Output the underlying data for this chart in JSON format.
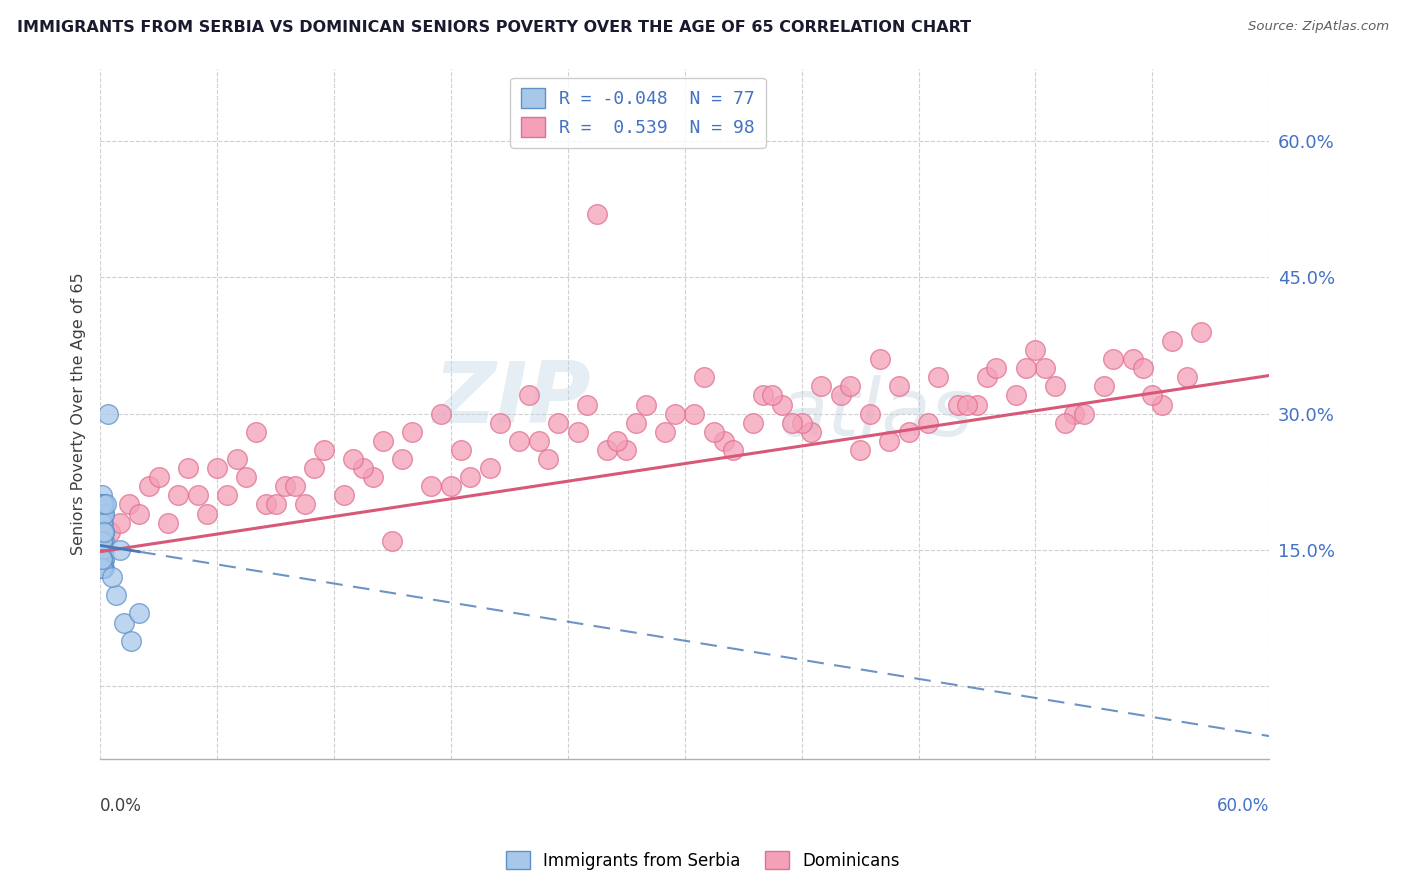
{
  "title": "IMMIGRANTS FROM SERBIA VS DOMINICAN SENIORS POVERTY OVER THE AGE OF 65 CORRELATION CHART",
  "source": "Source: ZipAtlas.com",
  "ylabel": "Seniors Poverty Over the Age of 65",
  "xlim": [
    0.0,
    0.6
  ],
  "ylim": [
    -0.08,
    0.68
  ],
  "serbia_R": -0.048,
  "serbia_N": 77,
  "dominican_R": 0.539,
  "dominican_N": 98,
  "serbia_color": "#a8c8ea",
  "dominican_color": "#f4a0b8",
  "serbia_edge": "#6090c8",
  "dominican_edge": "#e07090",
  "serbia_line_color": "#4878b8",
  "dominican_line_color": "#d85878",
  "watermark_zip": "ZIP",
  "watermark_atlas": "atlas",
  "legend_label_serbia": "Immigrants from Serbia",
  "legend_label_dominican": "Dominicans",
  "serbia_trend_x": [
    0.0,
    0.6
  ],
  "serbia_trend_y": [
    0.155,
    -0.055
  ],
  "dominican_trend_x": [
    0.0,
    0.6
  ],
  "dominican_trend_y": [
    0.148,
    0.342
  ],
  "serbia_x": [
    0.0005,
    0.001,
    0.0015,
    0.001,
    0.002,
    0.001,
    0.0008,
    0.0012,
    0.0006,
    0.001,
    0.0015,
    0.001,
    0.002,
    0.001,
    0.0008,
    0.0012,
    0.001,
    0.0015,
    0.001,
    0.002,
    0.001,
    0.0008,
    0.0012,
    0.001,
    0.0015,
    0.001,
    0.002,
    0.0008,
    0.001,
    0.0015,
    0.001,
    0.0012,
    0.001,
    0.002,
    0.0008,
    0.001,
    0.0015,
    0.001,
    0.002,
    0.0008,
    0.001,
    0.0015,
    0.001,
    0.002,
    0.0008,
    0.001,
    0.0015,
    0.001,
    0.0005,
    0.0008,
    0.001,
    0.0012,
    0.0015,
    0.002,
    0.0008,
    0.001,
    0.0015,
    0.001,
    0.002,
    0.0008,
    0.001,
    0.0015,
    0.001,
    0.002,
    0.0008,
    0.001,
    0.0015,
    0.001,
    0.004,
    0.008,
    0.012,
    0.016,
    0.02,
    0.006,
    0.003,
    0.01,
    0.002
  ],
  "serbia_y": [
    0.18,
    0.16,
    0.2,
    0.14,
    0.19,
    0.17,
    0.15,
    0.21,
    0.13,
    0.18,
    0.16,
    0.2,
    0.15,
    0.17,
    0.19,
    0.14,
    0.18,
    0.16,
    0.2,
    0.13,
    0.17,
    0.15,
    0.19,
    0.18,
    0.14,
    0.16,
    0.17,
    0.2,
    0.15,
    0.13,
    0.18,
    0.16,
    0.19,
    0.14,
    0.17,
    0.15,
    0.2,
    0.13,
    0.16,
    0.18,
    0.17,
    0.15,
    0.19,
    0.14,
    0.16,
    0.18,
    0.13,
    0.17,
    0.15,
    0.2,
    0.16,
    0.14,
    0.18,
    0.17,
    0.19,
    0.15,
    0.13,
    0.16,
    0.2,
    0.14,
    0.18,
    0.17,
    0.15,
    0.19,
    0.16,
    0.13,
    0.2,
    0.14,
    0.3,
    0.1,
    0.07,
    0.05,
    0.08,
    0.12,
    0.2,
    0.15,
    0.17
  ],
  "dominican_x": [
    0.005,
    0.015,
    0.025,
    0.035,
    0.045,
    0.055,
    0.065,
    0.075,
    0.085,
    0.095,
    0.11,
    0.125,
    0.14,
    0.155,
    0.17,
    0.185,
    0.2,
    0.215,
    0.23,
    0.245,
    0.26,
    0.275,
    0.29,
    0.305,
    0.32,
    0.335,
    0.35,
    0.365,
    0.38,
    0.395,
    0.41,
    0.425,
    0.44,
    0.455,
    0.47,
    0.485,
    0.5,
    0.515,
    0.53,
    0.545,
    0.558,
    0.01,
    0.03,
    0.05,
    0.07,
    0.09,
    0.115,
    0.135,
    0.16,
    0.18,
    0.205,
    0.225,
    0.25,
    0.27,
    0.295,
    0.315,
    0.34,
    0.36,
    0.385,
    0.405,
    0.43,
    0.45,
    0.475,
    0.495,
    0.52,
    0.54,
    0.02,
    0.06,
    0.1,
    0.145,
    0.19,
    0.235,
    0.28,
    0.325,
    0.37,
    0.415,
    0.46,
    0.505,
    0.55,
    0.04,
    0.08,
    0.13,
    0.175,
    0.22,
    0.265,
    0.31,
    0.355,
    0.4,
    0.445,
    0.49,
    0.535,
    0.255,
    0.48,
    0.105,
    0.345,
    0.565,
    0.15,
    0.39
  ],
  "dominican_y": [
    0.17,
    0.2,
    0.22,
    0.18,
    0.24,
    0.19,
    0.21,
    0.23,
    0.2,
    0.22,
    0.24,
    0.21,
    0.23,
    0.25,
    0.22,
    0.26,
    0.24,
    0.27,
    0.25,
    0.28,
    0.26,
    0.29,
    0.28,
    0.3,
    0.27,
    0.29,
    0.31,
    0.28,
    0.32,
    0.3,
    0.33,
    0.29,
    0.31,
    0.34,
    0.32,
    0.35,
    0.3,
    0.33,
    0.36,
    0.31,
    0.34,
    0.18,
    0.23,
    0.21,
    0.25,
    0.2,
    0.26,
    0.24,
    0.28,
    0.22,
    0.29,
    0.27,
    0.31,
    0.26,
    0.3,
    0.28,
    0.32,
    0.29,
    0.33,
    0.27,
    0.34,
    0.31,
    0.35,
    0.29,
    0.36,
    0.32,
    0.19,
    0.24,
    0.22,
    0.27,
    0.23,
    0.29,
    0.31,
    0.26,
    0.33,
    0.28,
    0.35,
    0.3,
    0.38,
    0.21,
    0.28,
    0.25,
    0.3,
    0.32,
    0.27,
    0.34,
    0.29,
    0.36,
    0.31,
    0.33,
    0.35,
    0.52,
    0.37,
    0.2,
    0.32,
    0.39,
    0.16,
    0.26
  ]
}
